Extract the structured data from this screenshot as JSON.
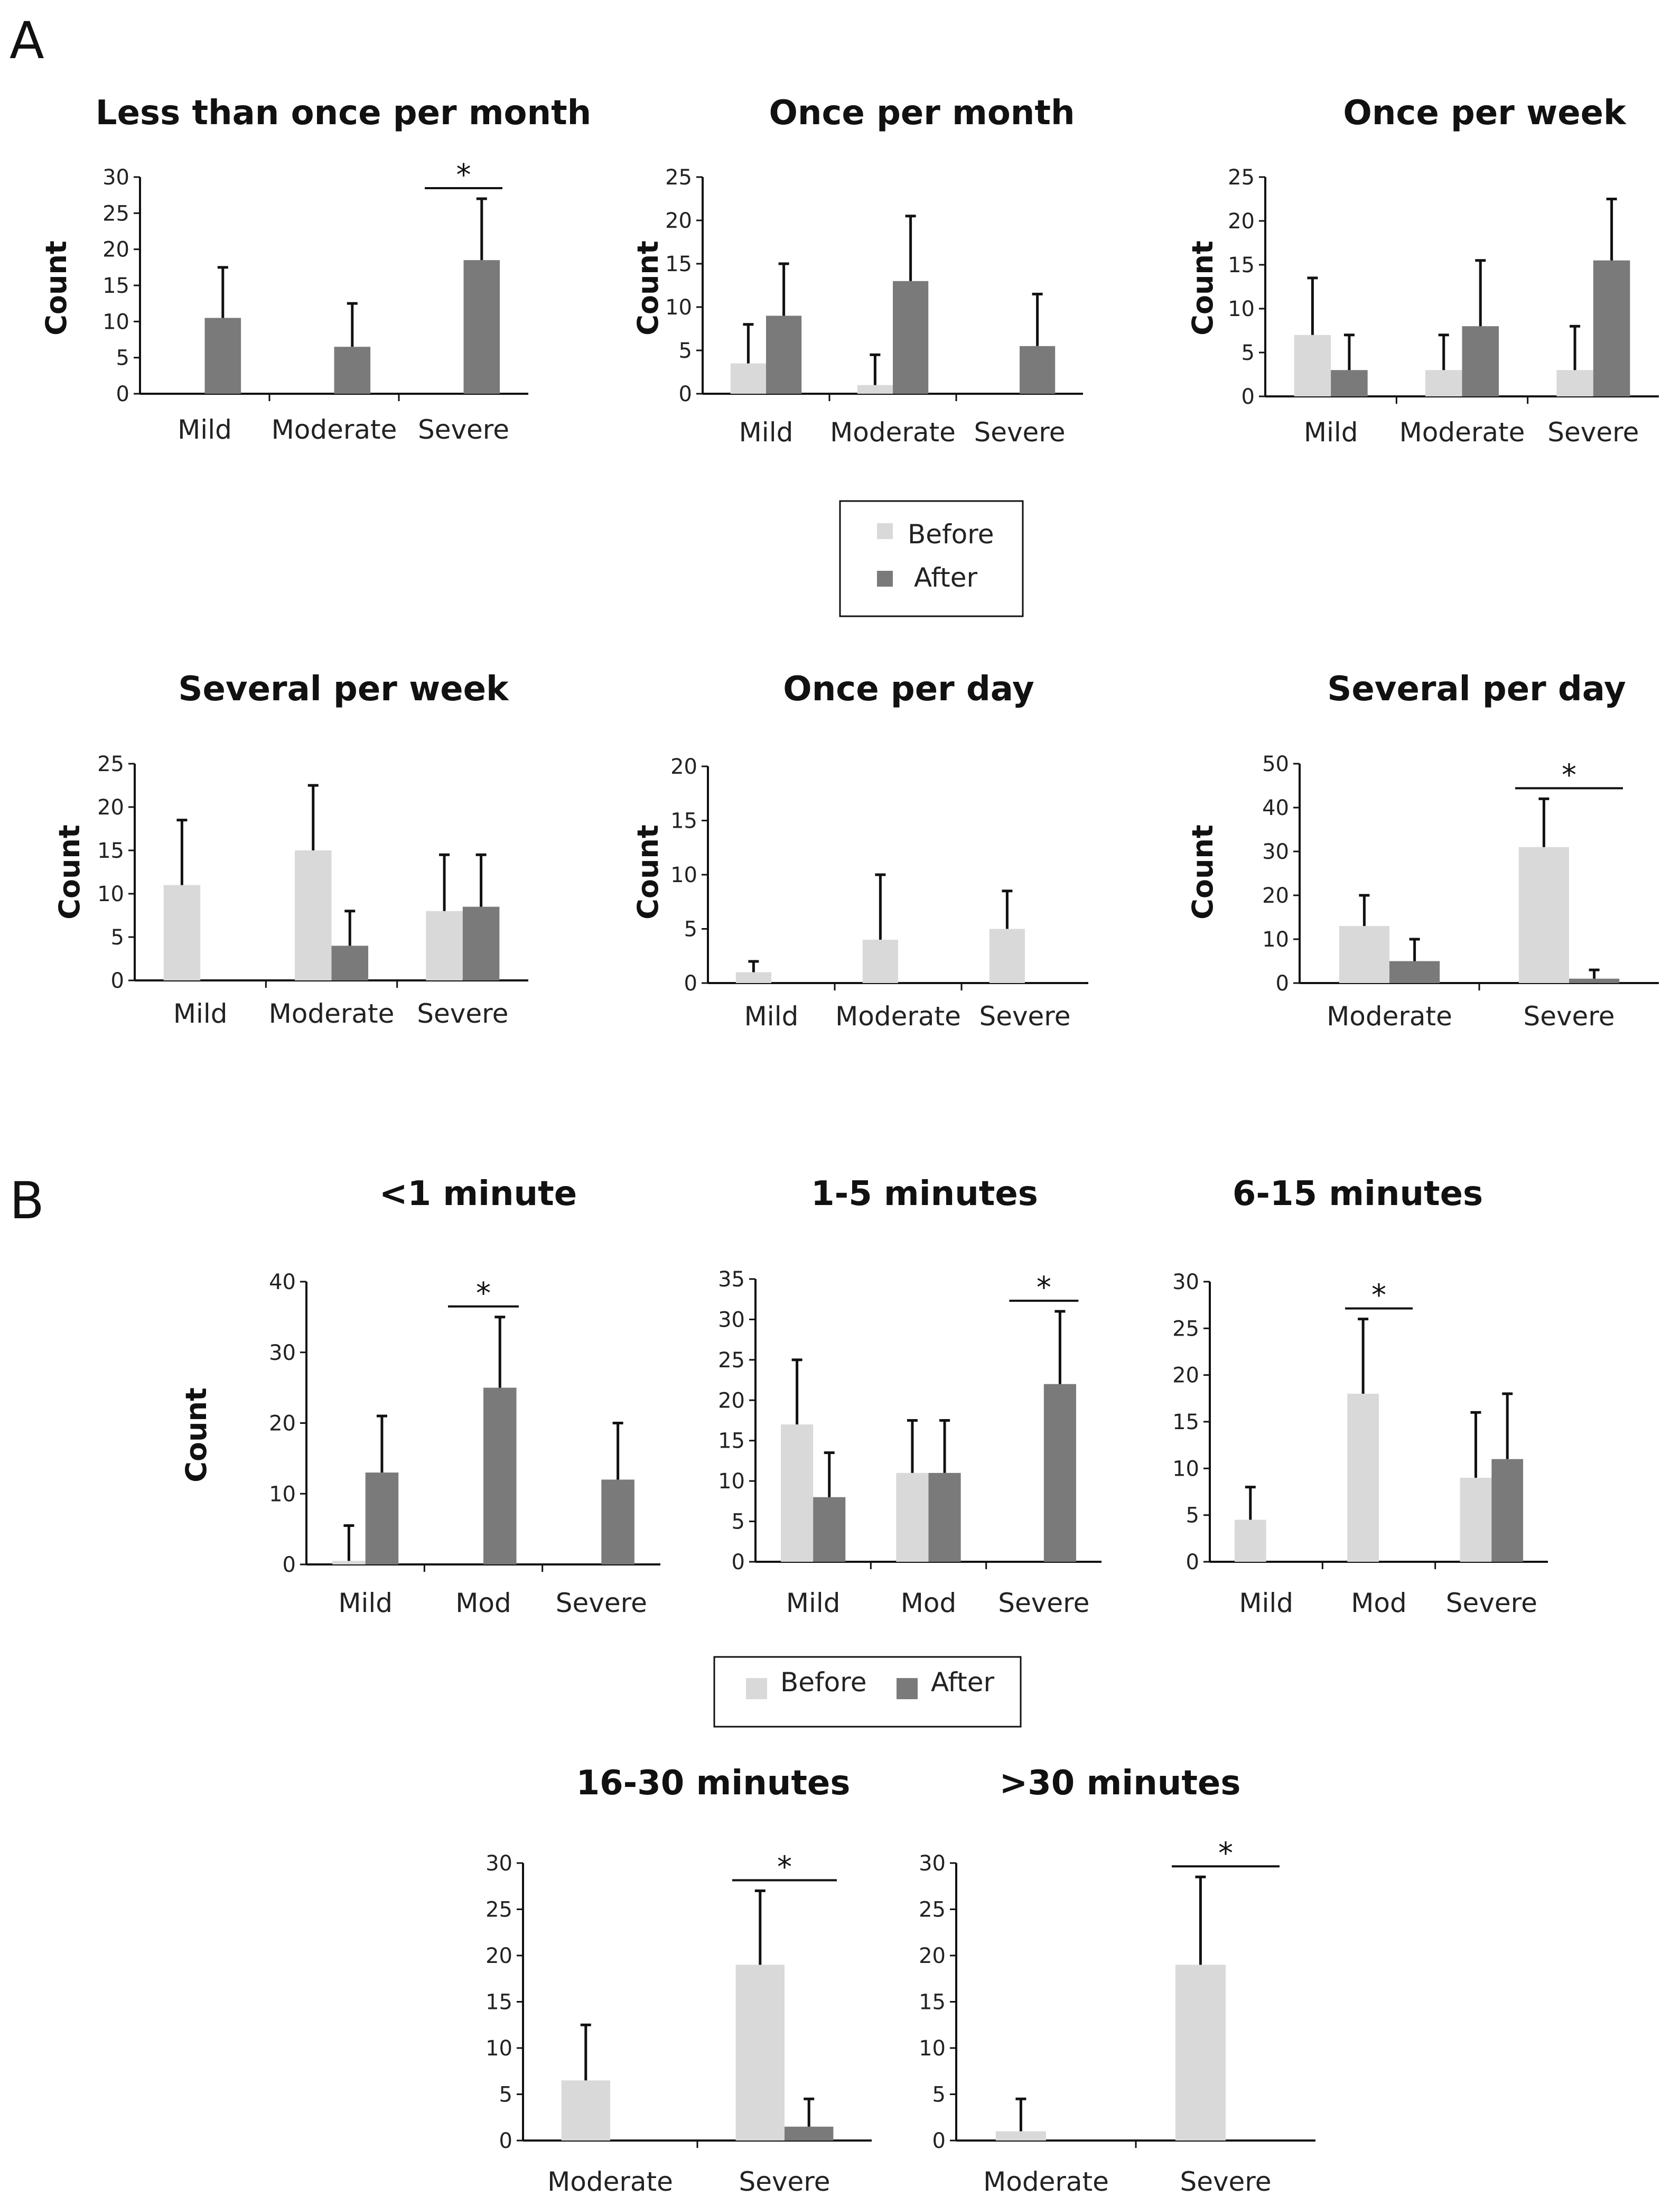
{
  "panels": {
    "a": "A",
    "b": "B"
  },
  "legend": {
    "before": "Before",
    "after": "After"
  },
  "colors": {
    "before": "#d9d9d9",
    "after": "#7a7a7a",
    "axis": "#111111"
  },
  "chart_data": [
    {
      "type": "bar",
      "title": "Less than once per month",
      "ylabel": "Count",
      "ylim": [
        0,
        30
      ],
      "ystep": 5,
      "categories": [
        "Mild",
        "Moderate",
        "Severe"
      ],
      "series": [
        {
          "name": "Before",
          "values": [
            0,
            0,
            0
          ],
          "errors": [
            0,
            0,
            0
          ]
        },
        {
          "name": "After",
          "values": [
            10.5,
            6.5,
            18.5
          ],
          "errors": [
            7,
            6,
            8.5
          ]
        }
      ],
      "significant": [
        "Severe"
      ]
    },
    {
      "type": "bar",
      "title": "Once per month",
      "ylabel": "Count",
      "ylim": [
        0,
        25
      ],
      "ystep": 5,
      "categories": [
        "Mild",
        "Moderate",
        "Severe"
      ],
      "series": [
        {
          "name": "Before",
          "values": [
            3.5,
            1,
            0
          ],
          "errors": [
            4.5,
            3.5,
            0
          ]
        },
        {
          "name": "After",
          "values": [
            9,
            13,
            5.5
          ],
          "errors": [
            6,
            7.5,
            6
          ]
        }
      ],
      "significant": []
    },
    {
      "type": "bar",
      "title": "Once per week",
      "ylabel": "Count",
      "ylim": [
        0,
        25
      ],
      "ystep": 5,
      "categories": [
        "Mild",
        "Moderate",
        "Severe"
      ],
      "series": [
        {
          "name": "Before",
          "values": [
            7,
            3,
            3
          ],
          "errors": [
            6.5,
            4,
            5
          ]
        },
        {
          "name": "After",
          "values": [
            3,
            8,
            15.5
          ],
          "errors": [
            4,
            7.5,
            7
          ]
        }
      ],
      "significant": []
    },
    {
      "type": "bar",
      "title": "Several per week",
      "ylabel": "Count",
      "ylim": [
        0,
        25
      ],
      "ystep": 5,
      "categories": [
        "Mild",
        "Moderate",
        "Severe"
      ],
      "series": [
        {
          "name": "Before",
          "values": [
            11,
            15,
            8
          ],
          "errors": [
            7.5,
            7.5,
            6.5
          ]
        },
        {
          "name": "After",
          "values": [
            0,
            4,
            8.5
          ],
          "errors": [
            0,
            4,
            6
          ]
        }
      ],
      "significant": []
    },
    {
      "type": "bar",
      "title": "Once per day",
      "ylabel": "Count",
      "ylim": [
        0,
        20
      ],
      "ystep": 5,
      "categories": [
        "Mild",
        "Moderate",
        "Severe"
      ],
      "series": [
        {
          "name": "Before",
          "values": [
            1,
            4,
            5
          ],
          "errors": [
            1,
            6,
            3.5
          ]
        },
        {
          "name": "After",
          "values": [
            0,
            0,
            0
          ],
          "errors": [
            0,
            0,
            0
          ]
        }
      ],
      "significant": []
    },
    {
      "type": "bar",
      "title": "Several per day",
      "ylabel": "Count",
      "ylim": [
        0,
        50
      ],
      "ystep": 10,
      "categories": [
        "Moderate",
        "Severe"
      ],
      "series": [
        {
          "name": "Before",
          "values": [
            13,
            31
          ],
          "errors": [
            7,
            11
          ]
        },
        {
          "name": "After",
          "values": [
            5,
            1
          ],
          "errors": [
            5,
            2
          ]
        }
      ],
      "significant": [
        "Severe"
      ]
    },
    {
      "type": "bar",
      "title": "<1 minute",
      "ylabel": "Count",
      "ylim": [
        0,
        40
      ],
      "ystep": 10,
      "categories": [
        "Mild",
        "Mod",
        "Severe"
      ],
      "series": [
        {
          "name": "Before",
          "values": [
            0.5,
            0,
            0
          ],
          "errors": [
            5,
            0,
            0
          ]
        },
        {
          "name": "After",
          "values": [
            13,
            25,
            12
          ],
          "errors": [
            8,
            10,
            8
          ]
        }
      ],
      "significant": [
        "Mod"
      ]
    },
    {
      "type": "bar",
      "title": "1-5 minutes",
      "ylabel": "",
      "ylim": [
        0,
        35
      ],
      "ystep": 5,
      "categories": [
        "Mild",
        "Mod",
        "Severe"
      ],
      "series": [
        {
          "name": "Before",
          "values": [
            17,
            11,
            0
          ],
          "errors": [
            8,
            6.5,
            0
          ]
        },
        {
          "name": "After",
          "values": [
            8,
            11,
            22
          ],
          "errors": [
            5.5,
            6.5,
            9
          ]
        }
      ],
      "significant": [
        "Severe"
      ]
    },
    {
      "type": "bar",
      "title": "6-15 minutes",
      "ylabel": "",
      "ylim": [
        0,
        30
      ],
      "ystep": 5,
      "categories": [
        "Mild",
        "Mod",
        "Severe"
      ],
      "series": [
        {
          "name": "Before",
          "values": [
            4.5,
            18,
            9
          ],
          "errors": [
            3.5,
            8,
            7
          ]
        },
        {
          "name": "After",
          "values": [
            0,
            0,
            11
          ],
          "errors": [
            0,
            0,
            7
          ]
        }
      ],
      "significant": [
        "Mod"
      ]
    },
    {
      "type": "bar",
      "title": "16-30 minutes",
      "ylabel": "",
      "ylim": [
        0,
        30
      ],
      "ystep": 5,
      "categories": [
        "Moderate",
        "Severe"
      ],
      "series": [
        {
          "name": "Before",
          "values": [
            6.5,
            19
          ],
          "errors": [
            6,
            8
          ]
        },
        {
          "name": "After",
          "values": [
            0,
            1.5
          ],
          "errors": [
            0,
            3
          ]
        }
      ],
      "significant": [
        "Severe"
      ]
    },
    {
      "type": "bar",
      "title": ">30 minutes",
      "ylabel": "",
      "ylim": [
        0,
        30
      ],
      "ystep": 5,
      "categories": [
        "Moderate",
        "Severe"
      ],
      "series": [
        {
          "name": "Before",
          "values": [
            1,
            19
          ],
          "errors": [
            3.5,
            9.5
          ]
        },
        {
          "name": "After",
          "values": [
            0,
            0
          ],
          "errors": [
            0,
            0
          ]
        }
      ],
      "significant": [
        "Severe"
      ]
    }
  ]
}
